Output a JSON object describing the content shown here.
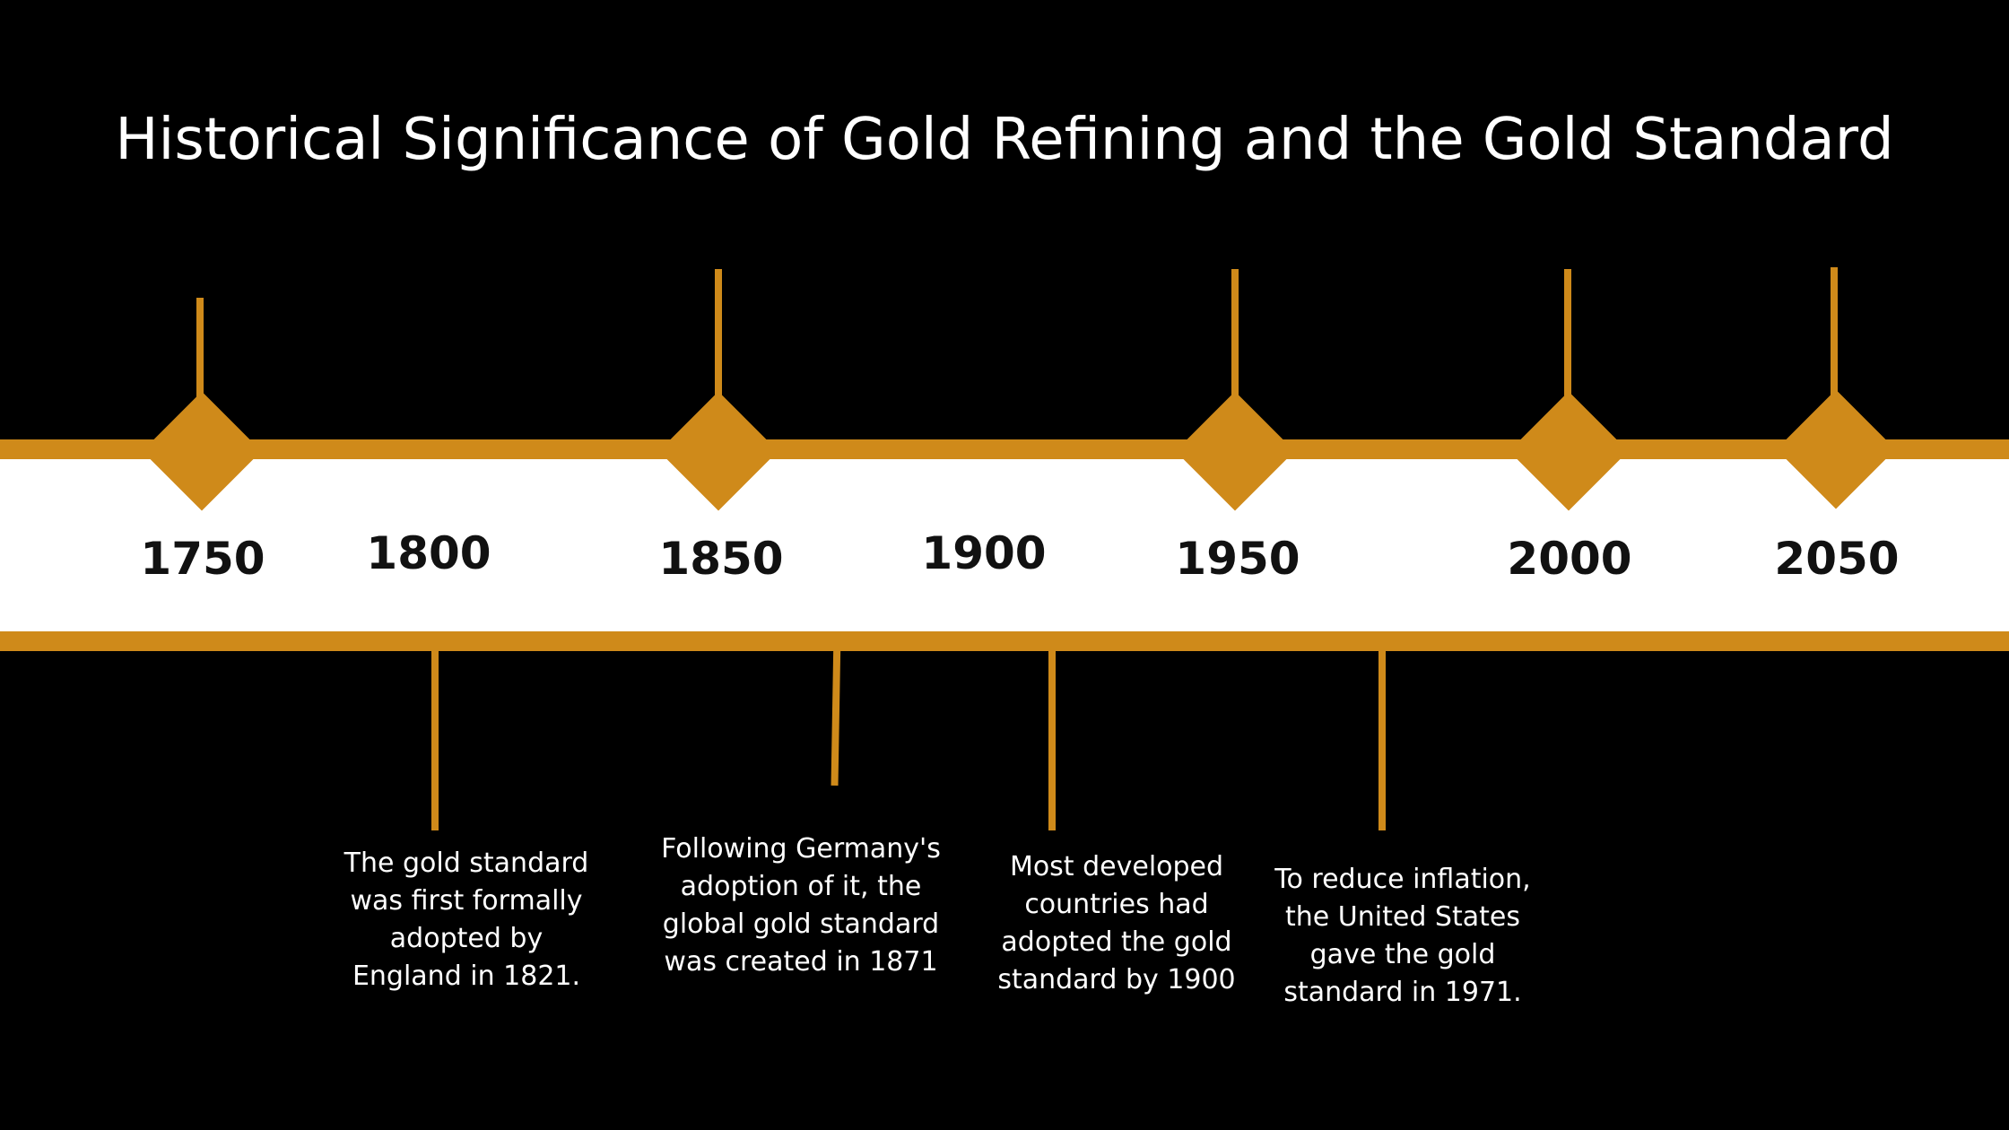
{
  "title": "Historical Significance of Gold Refining and the Gold Standard",
  "colors": {
    "background": "#000000",
    "accent": "#cf8a1a",
    "band": "#ffffff",
    "year_text": "#111111",
    "event_text": "#ffffff"
  },
  "years": [
    "1750",
    "1800",
    "1850",
    "1900",
    "1950",
    "2000",
    "2050"
  ],
  "events": [
    {
      "year": "1800",
      "text": "The gold standard was first formally adopted by England in 1821."
    },
    {
      "year": "1850",
      "text": "Following Germany's adoption of it, the global gold standard was created in 1871"
    },
    {
      "year": "1900",
      "text": "Most developed countries had adopted the gold standard by 1900"
    },
    {
      "year": "1950",
      "text": "To reduce inflation, the United States gave the gold standard in 1971."
    }
  ]
}
